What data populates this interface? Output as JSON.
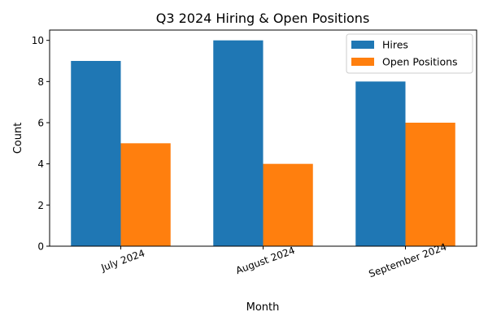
{
  "chart_data": {
    "type": "bar",
    "title": "Q3 2024 Hiring & Open Positions",
    "xlabel": "Month",
    "ylabel": "Count",
    "categories": [
      "July 2024",
      "August 2024",
      "September 2024"
    ],
    "series": [
      {
        "name": "Hires",
        "values": [
          9,
          10,
          8
        ],
        "color": "#1f77b4"
      },
      {
        "name": "Open Positions",
        "values": [
          5,
          4,
          6
        ],
        "color": "#ff7f0e"
      }
    ],
    "ylim": [
      0,
      10.5
    ],
    "yticks": [
      0,
      2,
      4,
      6,
      8,
      10
    ],
    "grid": false,
    "legend": "top-right",
    "xtick_rotation_deg": 20
  }
}
